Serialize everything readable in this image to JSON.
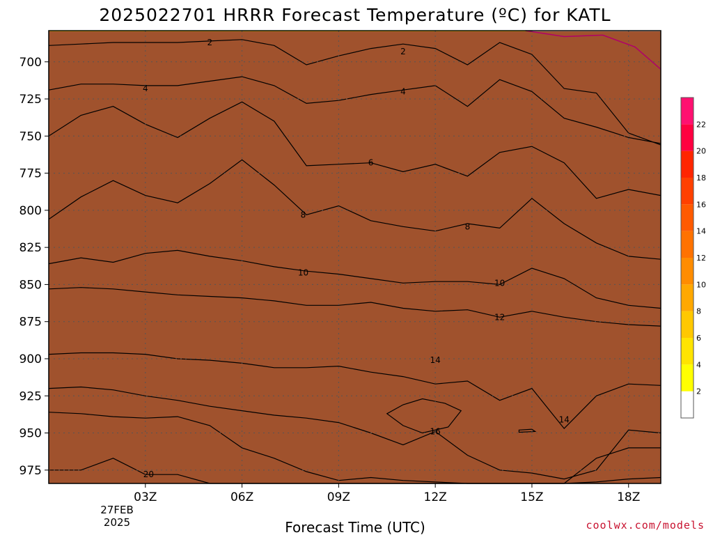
{
  "title": "2025022701 HRRR Forecast Temperature (ºC) for KATL",
  "credit": "coolwx.com/models",
  "chart_data": {
    "type": "heatmap",
    "title": "2025022701 HRRR Forecast Temperature (ºC) for KATL",
    "xlabel": "Forecast Time (UTC)",
    "ylabel": "",
    "x_ticks": [
      "03Z",
      "06Z",
      "09Z",
      "12Z",
      "15Z",
      "18Z"
    ],
    "x_tick_values": [
      3,
      6,
      9,
      12,
      15,
      18
    ],
    "xlim": [
      0,
      19
    ],
    "date_label": [
      "27FEB",
      "2025"
    ],
    "y_ticks": [
      700,
      725,
      750,
      775,
      800,
      825,
      850,
      875,
      900,
      925,
      950,
      975
    ],
    "ylim": [
      679,
      984
    ],
    "y_inverted": true,
    "grid": true,
    "colorbar": {
      "levels": [
        2,
        4,
        6,
        8,
        10,
        12,
        14,
        16,
        18,
        20,
        22
      ],
      "colors": [
        "#ffffff",
        "#ffff00",
        "#ffe400",
        "#ffc800",
        "#ffa800",
        "#ff8c00",
        "#ff7200",
        "#ff5a00",
        "#ff4000",
        "#ff2500",
        "#ff0040",
        "#ff1070"
      ]
    },
    "surface_color": "#a0522d",
    "x": [
      0,
      1,
      2,
      3,
      4,
      5,
      6,
      7,
      8,
      9,
      10,
      11,
      12,
      13,
      14,
      15,
      16,
      17,
      18,
      19
    ],
    "contours": [
      {
        "level": 2,
        "label": "2",
        "pressure": [
          689,
          688,
          687,
          687,
          687,
          686,
          685,
          689,
          702,
          696,
          691,
          688,
          691,
          702,
          687,
          695,
          718,
          721,
          748,
          756
        ]
      },
      {
        "level": 4,
        "label": "4",
        "pressure": [
          719,
          715,
          715,
          716,
          716,
          713,
          710,
          716,
          728,
          726,
          722,
          719,
          716,
          730,
          712,
          720,
          738,
          744,
          751,
          755
        ]
      },
      {
        "level": 6,
        "label": "6",
        "pressure": [
          750,
          736,
          730,
          742,
          751,
          738,
          727,
          740,
          770,
          769,
          768,
          774,
          769,
          777,
          761,
          757,
          768,
          792,
          786,
          790
        ]
      },
      {
        "level": 8,
        "label": "8",
        "pressure": [
          806,
          791,
          780,
          790,
          795,
          782,
          766,
          783,
          803,
          797,
          807,
          811,
          814,
          809,
          812,
          792,
          809,
          822,
          831,
          833
        ]
      },
      {
        "level": 10,
        "label": "10",
        "pressure": [
          836,
          832,
          835,
          829,
          827,
          831,
          834,
          838,
          841,
          843,
          846,
          849,
          848,
          848,
          850,
          839,
          846,
          859,
          864,
          866
        ]
      },
      {
        "level": 12,
        "label": "12",
        "pressure": [
          853,
          852,
          853,
          855,
          857,
          858,
          859,
          861,
          864,
          864,
          862,
          866,
          868,
          867,
          872,
          868,
          872,
          875,
          877,
          878
        ]
      },
      {
        "level": 14,
        "label": "14",
        "pressure": [
          897,
          896,
          896,
          897,
          900,
          901,
          903,
          906,
          906,
          905,
          909,
          912,
          917,
          915,
          928,
          920,
          947,
          925,
          917,
          918
        ]
      },
      {
        "level": 16,
        "label": "16",
        "pressure": [
          920,
          919,
          921,
          925,
          928,
          932,
          935,
          938,
          940,
          943,
          950,
          958,
          949,
          965,
          975,
          977,
          981,
          975,
          948,
          950
        ]
      },
      {
        "level": 18,
        "label": "18",
        "pressure": [
          936,
          937,
          939,
          940,
          939,
          945,
          960,
          967,
          976,
          982,
          980,
          982,
          983,
          984,
          984,
          984,
          984,
          967,
          960,
          960
        ]
      },
      {
        "level": 20,
        "label": "20",
        "pressure": [
          975,
          975,
          967,
          978,
          978,
          984,
          984,
          984,
          984,
          984,
          984,
          984,
          984,
          984,
          984,
          984,
          984,
          983,
          981,
          980
        ]
      }
    ],
    "contour_labels": [
      {
        "level": 2,
        "x": 5.0,
        "p": 687
      },
      {
        "level": 2,
        "x": 11.0,
        "p": 693
      },
      {
        "level": 4,
        "x": 3.0,
        "p": 718
      },
      {
        "level": 4,
        "x": 11.0,
        "p": 720
      },
      {
        "level": 6,
        "x": 10.0,
        "p": 768
      },
      {
        "level": 8,
        "x": 7.9,
        "p": 803
      },
      {
        "level": 8,
        "x": 13.0,
        "p": 811
      },
      {
        "level": 10,
        "x": 7.9,
        "p": 842
      },
      {
        "level": 10,
        "x": 14.0,
        "p": 849
      },
      {
        "level": 12,
        "x": 14.0,
        "p": 872
      },
      {
        "level": 14,
        "x": 12.0,
        "p": 901
      },
      {
        "level": 14,
        "x": 16.0,
        "p": 941
      },
      {
        "level": 16,
        "x": 12.0,
        "p": 949
      },
      {
        "level": 20,
        "x": 3.1,
        "p": 978
      }
    ],
    "warm_pocket_16": [
      [
        10.5,
        937
      ],
      [
        11.0,
        931
      ],
      [
        11.6,
        927
      ],
      [
        12.3,
        930
      ],
      [
        12.8,
        935
      ],
      [
        12.4,
        946
      ],
      [
        11.6,
        950
      ],
      [
        11.0,
        945
      ]
    ],
    "pocket_18_small": [
      [
        14.6,
        948
      ],
      [
        15.0,
        947.5
      ],
      [
        15.1,
        949
      ],
      [
        14.6,
        949.5
      ]
    ]
  }
}
